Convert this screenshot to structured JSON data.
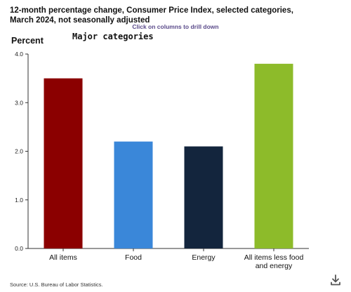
{
  "chart_data": {
    "type": "bar",
    "title": "12-month percentage change, Consumer Price Index, selected categories, March 2024, not seasonally adjusted",
    "subtitle": "Click on columns to drill down",
    "heading": "Major categories",
    "ylabel": "Percent",
    "xlabel": "",
    "ylim": [
      0,
      4
    ],
    "yticks": [
      "0.0",
      "1.0",
      "2.0",
      "3.0",
      "4.0"
    ],
    "categories": [
      "All items",
      "Food",
      "Energy",
      "All items less food and energy"
    ],
    "category_lines": [
      [
        "All items"
      ],
      [
        "Food"
      ],
      [
        "Energy"
      ],
      [
        "All items less food",
        "and energy"
      ]
    ],
    "values": [
      3.5,
      2.2,
      2.1,
      3.8
    ],
    "colors": [
      "#8b0000",
      "#3a87d9",
      "#13253d",
      "#8dbb2a"
    ],
    "grid": false,
    "legend": "none",
    "source": "Source: U.S. Bureau of Labor Statistics."
  },
  "toolbar": {
    "download_icon": "download-icon"
  }
}
